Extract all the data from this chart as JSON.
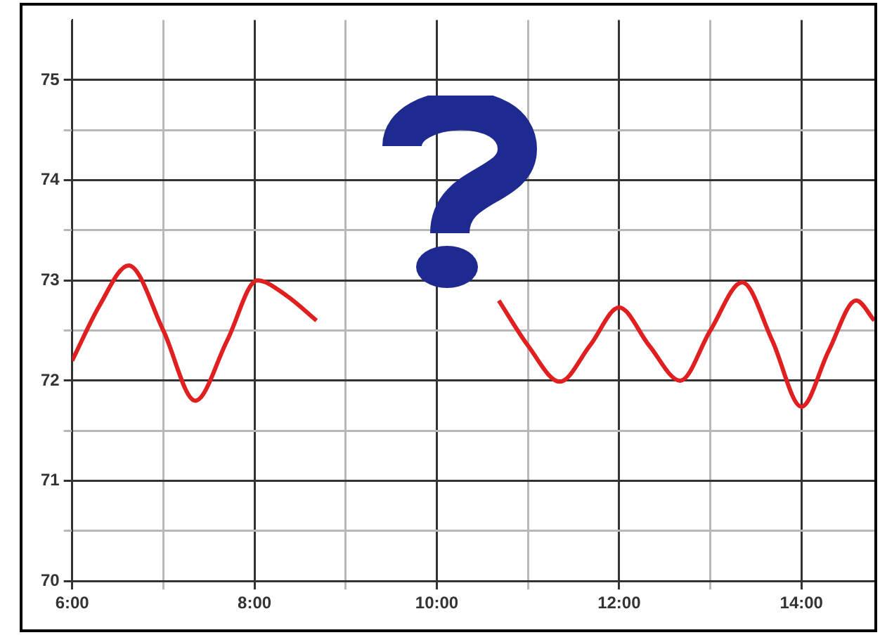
{
  "chart_data": {
    "type": "line",
    "x": [
      6.0,
      6.3,
      6.62,
      7.0,
      7.35,
      7.7,
      8.03,
      8.35,
      8.68,
      9.5,
      10.68,
      11.0,
      11.35,
      11.68,
      12.0,
      12.33,
      12.67,
      13.0,
      13.35,
      13.68,
      14.0,
      14.3,
      14.6,
      14.8
    ],
    "series": [
      {
        "color": "#e02020",
        "values": [
          72.2,
          72.75,
          73.15,
          72.5,
          71.8,
          72.4,
          73.0,
          72.85,
          72.6,
          null,
          72.8,
          72.35,
          71.99,
          72.35,
          72.73,
          72.35,
          72.0,
          72.5,
          72.98,
          72.4,
          71.74,
          72.3,
          72.8,
          72.6
        ]
      }
    ],
    "xlim": [
      6,
      14.8
    ],
    "ylim": [
      70,
      75.6
    ],
    "xticks": [
      {
        "value": 6,
        "label": "6:00"
      },
      {
        "value": 7,
        "label": null
      },
      {
        "value": 8,
        "label": "8:00"
      },
      {
        "value": 9,
        "label": null
      },
      {
        "value": 10,
        "label": "10:00"
      },
      {
        "value": 11,
        "label": null
      },
      {
        "value": 12,
        "label": "12:00"
      },
      {
        "value": 13,
        "label": null
      },
      {
        "value": 14,
        "label": "14:00"
      }
    ],
    "yticks": [
      70,
      {
        "value": 70.5,
        "label": null
      },
      71,
      {
        "value": 71.5,
        "label": null
      },
      72,
      {
        "value": 72.5,
        "label": null
      },
      73,
      {
        "value": 73.5,
        "label": null
      },
      74,
      {
        "value": 74.5,
        "label": null
      },
      75
    ],
    "grid": true,
    "legend": false,
    "marker": "none",
    "line_style": "solid"
  }
}
